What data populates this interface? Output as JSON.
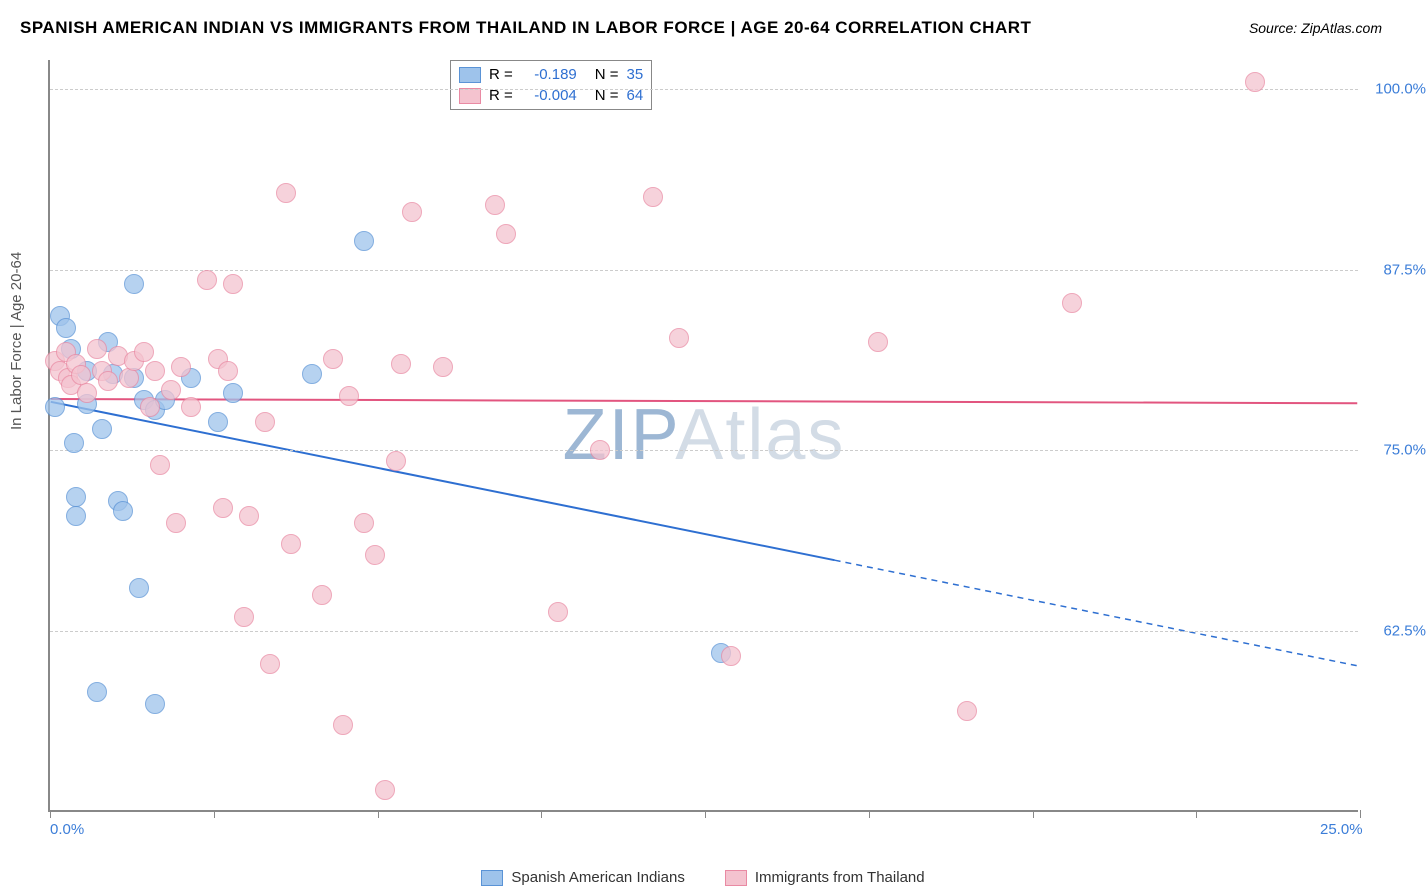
{
  "title": "SPANISH AMERICAN INDIAN VS IMMIGRANTS FROM THAILAND IN LABOR FORCE | AGE 20-64 CORRELATION CHART",
  "source": "Source: ZipAtlas.com",
  "ylabel": "In Labor Force | Age 20-64",
  "watermark_a": "ZIP",
  "watermark_b": "Atlas",
  "chart": {
    "type": "scatter",
    "xlim": [
      0,
      25
    ],
    "ylim": [
      50,
      102
    ],
    "xticks": [
      0,
      3.125,
      6.25,
      9.375,
      12.5,
      15.625,
      18.75,
      21.875,
      25
    ],
    "xticklabels": {
      "0": "0.0%",
      "25": "25.0%"
    },
    "yticks": [
      62.5,
      75.0,
      87.5,
      100.0
    ],
    "yticklabels": [
      "62.5%",
      "75.0%",
      "87.5%",
      "100.0%"
    ],
    "grid_color": "#cccccc",
    "background_color": "#ffffff",
    "marker_radius": 10,
    "marker_opacity": 0.35,
    "series": [
      {
        "name": "Spanish American Indians",
        "color_fill": "#9ec3eb",
        "color_stroke": "#5a93d6",
        "R": "-0.189",
        "N": "35",
        "trend": {
          "x1": 0,
          "y1": 78.3,
          "x2": 25,
          "y2": 60.0,
          "solid_until_x": 15.0,
          "color": "#2e6fd1",
          "width": 2
        },
        "points": [
          [
            0.1,
            78.0
          ],
          [
            0.2,
            84.3
          ],
          [
            0.3,
            83.5
          ],
          [
            0.4,
            82.0
          ],
          [
            0.45,
            75.5
          ],
          [
            0.5,
            71.8
          ],
          [
            0.5,
            70.5
          ],
          [
            0.7,
            80.5
          ],
          [
            0.7,
            78.2
          ],
          [
            0.9,
            58.3
          ],
          [
            1.0,
            76.5
          ],
          [
            1.1,
            82.5
          ],
          [
            1.2,
            80.3
          ],
          [
            1.3,
            71.5
          ],
          [
            1.4,
            70.8
          ],
          [
            1.6,
            80.0
          ],
          [
            1.6,
            86.5
          ],
          [
            1.7,
            65.5
          ],
          [
            1.8,
            78.5
          ],
          [
            2.0,
            57.5
          ],
          [
            2.0,
            77.8
          ],
          [
            2.2,
            78.5
          ],
          [
            2.7,
            80.0
          ],
          [
            3.2,
            77.0
          ],
          [
            3.5,
            79.0
          ],
          [
            5.0,
            80.3
          ],
          [
            6.0,
            89.5
          ],
          [
            12.8,
            61.0
          ]
        ]
      },
      {
        "name": "Immigrants from Thailand",
        "color_fill": "#f4c3cf",
        "color_stroke": "#e98aa3",
        "R": "-0.004",
        "N": "64",
        "trend": {
          "x1": 0,
          "y1": 78.5,
          "x2": 25,
          "y2": 78.2,
          "solid_until_x": 25,
          "color": "#e2557f",
          "width": 2
        },
        "points": [
          [
            0.1,
            81.2
          ],
          [
            0.2,
            80.5
          ],
          [
            0.3,
            81.8
          ],
          [
            0.35,
            80.0
          ],
          [
            0.4,
            79.5
          ],
          [
            0.5,
            81.0
          ],
          [
            0.6,
            80.2
          ],
          [
            0.7,
            79.0
          ],
          [
            0.9,
            82.0
          ],
          [
            1.0,
            80.5
          ],
          [
            1.1,
            79.8
          ],
          [
            1.3,
            81.5
          ],
          [
            1.5,
            80.0
          ],
          [
            1.6,
            81.2
          ],
          [
            1.8,
            81.8
          ],
          [
            1.9,
            78.0
          ],
          [
            2.0,
            80.5
          ],
          [
            2.1,
            74.0
          ],
          [
            2.3,
            79.2
          ],
          [
            2.4,
            70.0
          ],
          [
            2.5,
            80.8
          ],
          [
            2.7,
            78.0
          ],
          [
            3.0,
            86.8
          ],
          [
            3.2,
            81.3
          ],
          [
            3.3,
            71.0
          ],
          [
            3.4,
            80.5
          ],
          [
            3.5,
            86.5
          ],
          [
            3.7,
            63.5
          ],
          [
            3.8,
            70.5
          ],
          [
            4.1,
            77.0
          ],
          [
            4.2,
            60.2
          ],
          [
            4.5,
            92.8
          ],
          [
            4.6,
            68.5
          ],
          [
            5.2,
            65.0
          ],
          [
            5.4,
            81.3
          ],
          [
            5.6,
            56.0
          ],
          [
            5.7,
            78.8
          ],
          [
            6.0,
            70.0
          ],
          [
            6.2,
            67.8
          ],
          [
            6.4,
            51.5
          ],
          [
            6.6,
            74.3
          ],
          [
            6.7,
            81.0
          ],
          [
            6.9,
            91.5
          ],
          [
            7.5,
            80.8
          ],
          [
            8.5,
            92.0
          ],
          [
            8.7,
            90.0
          ],
          [
            9.7,
            63.8
          ],
          [
            10.5,
            75.0
          ],
          [
            11.5,
            92.5
          ],
          [
            12.0,
            82.8
          ],
          [
            13.0,
            60.8
          ],
          [
            15.8,
            82.5
          ],
          [
            17.5,
            57.0
          ],
          [
            19.5,
            85.2
          ],
          [
            23.0,
            100.5
          ]
        ]
      }
    ],
    "legend_top": {
      "R_label": "R =",
      "N_label": "N ="
    },
    "legend_bottom": [
      {
        "swatch_fill": "#9ec3eb",
        "swatch_stroke": "#5a93d6"
      },
      {
        "swatch_fill": "#f4c3cf",
        "swatch_stroke": "#e98aa3"
      }
    ]
  }
}
